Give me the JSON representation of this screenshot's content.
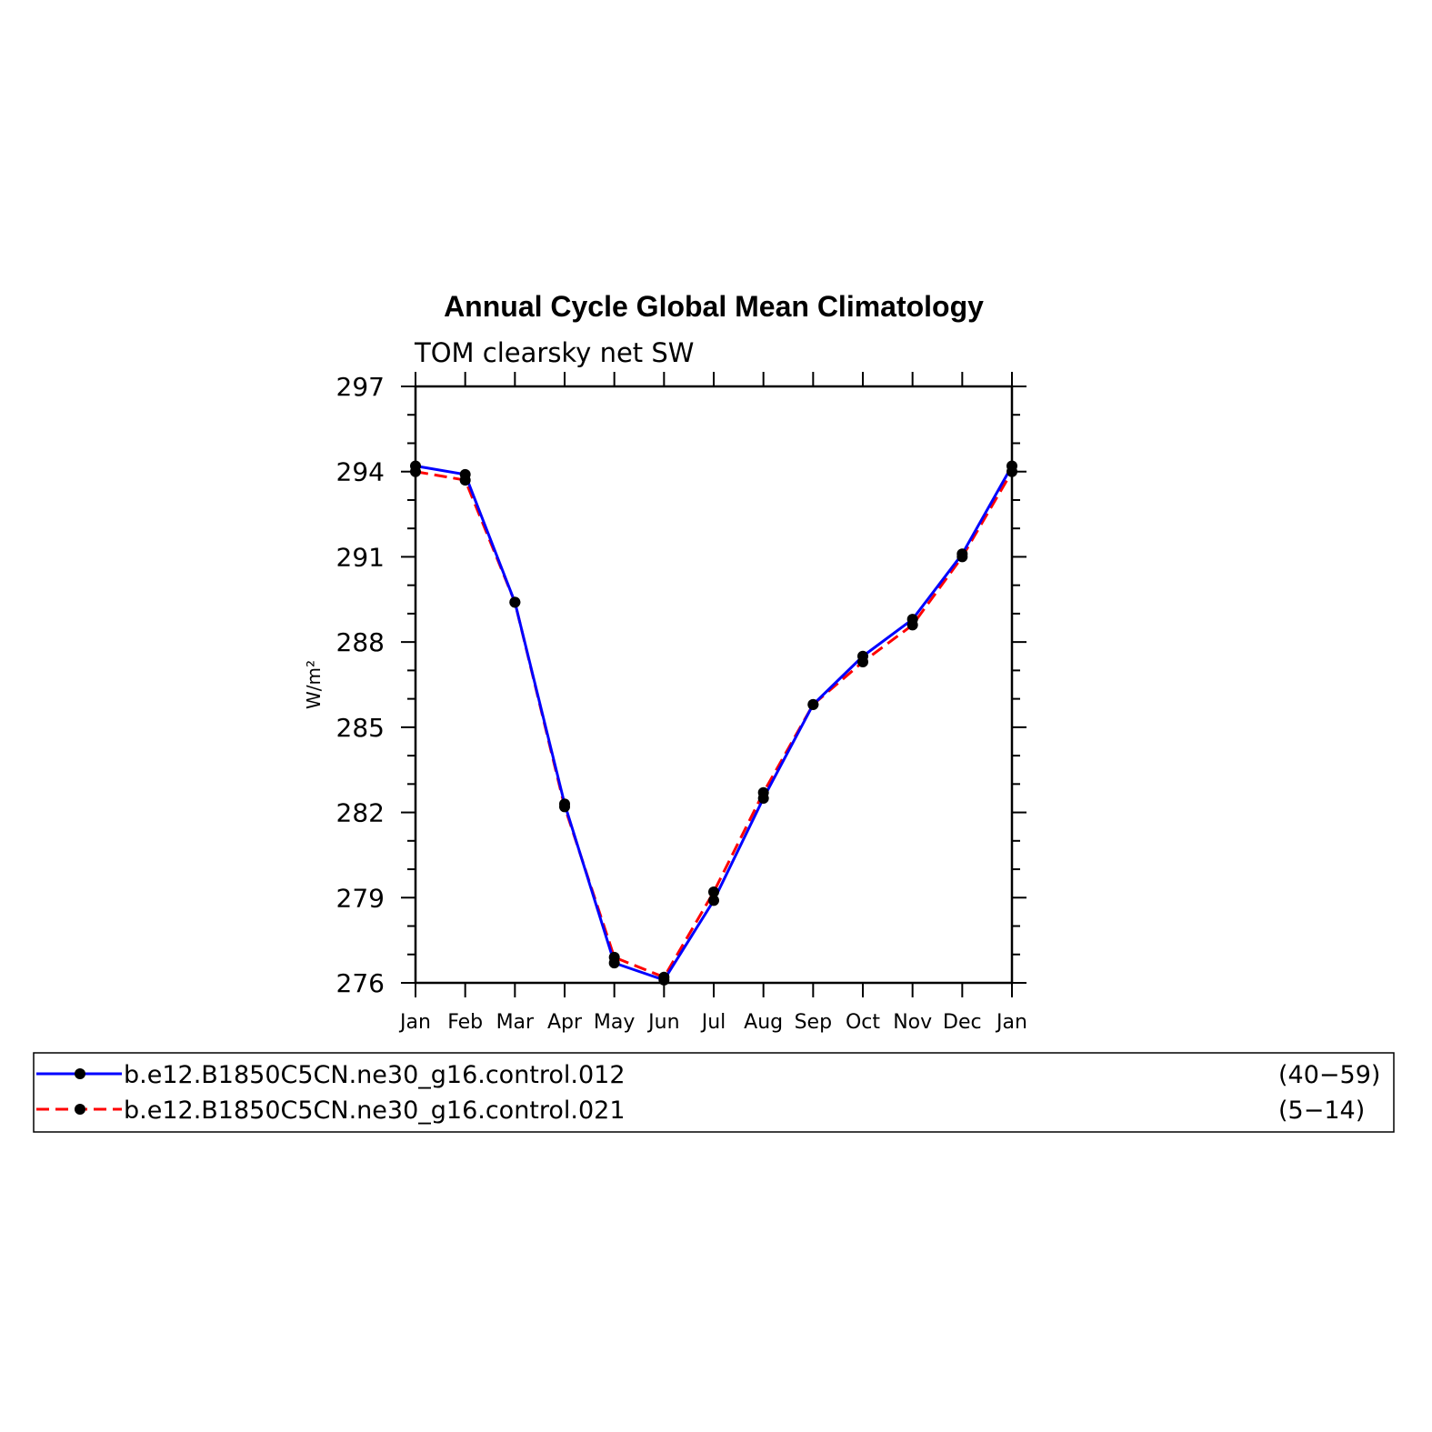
{
  "chart_data": {
    "type": "line",
    "title": "Annual Cycle Global Mean Climatology",
    "subtitle": "TOM clearsky net SW",
    "ylabel": "W/m²",
    "xlabel": "",
    "categories": [
      "Jan",
      "Feb",
      "Mar",
      "Apr",
      "May",
      "Jun",
      "Jul",
      "Aug",
      "Sep",
      "Oct",
      "Nov",
      "Dec",
      "Jan"
    ],
    "ylim": [
      276,
      297
    ],
    "yticks": [
      276,
      279,
      282,
      285,
      288,
      291,
      294,
      297
    ],
    "yminor_step": 1,
    "grid": false,
    "legend_position": "bottom",
    "series": [
      {
        "name": "b.e12.B1850C5CN.ne30_g16.control.012",
        "years": "(40−59)",
        "color": "#0000ff",
        "line_style": "solid",
        "marker": "filled-circle",
        "values": [
          294.2,
          293.9,
          289.4,
          282.3,
          276.7,
          276.1,
          278.9,
          282.5,
          285.8,
          287.5,
          288.8,
          291.1,
          294.2
        ]
      },
      {
        "name": "b.e12.B1850C5CN.ne30_g16.control.021",
        "years": "(5−14)",
        "color": "#ff0000",
        "line_style": "dashed",
        "marker": "filled-circle",
        "values": [
          294.0,
          293.7,
          289.4,
          282.2,
          276.9,
          276.2,
          279.2,
          282.7,
          285.8,
          287.3,
          288.6,
          291.0,
          294.0
        ]
      }
    ]
  }
}
